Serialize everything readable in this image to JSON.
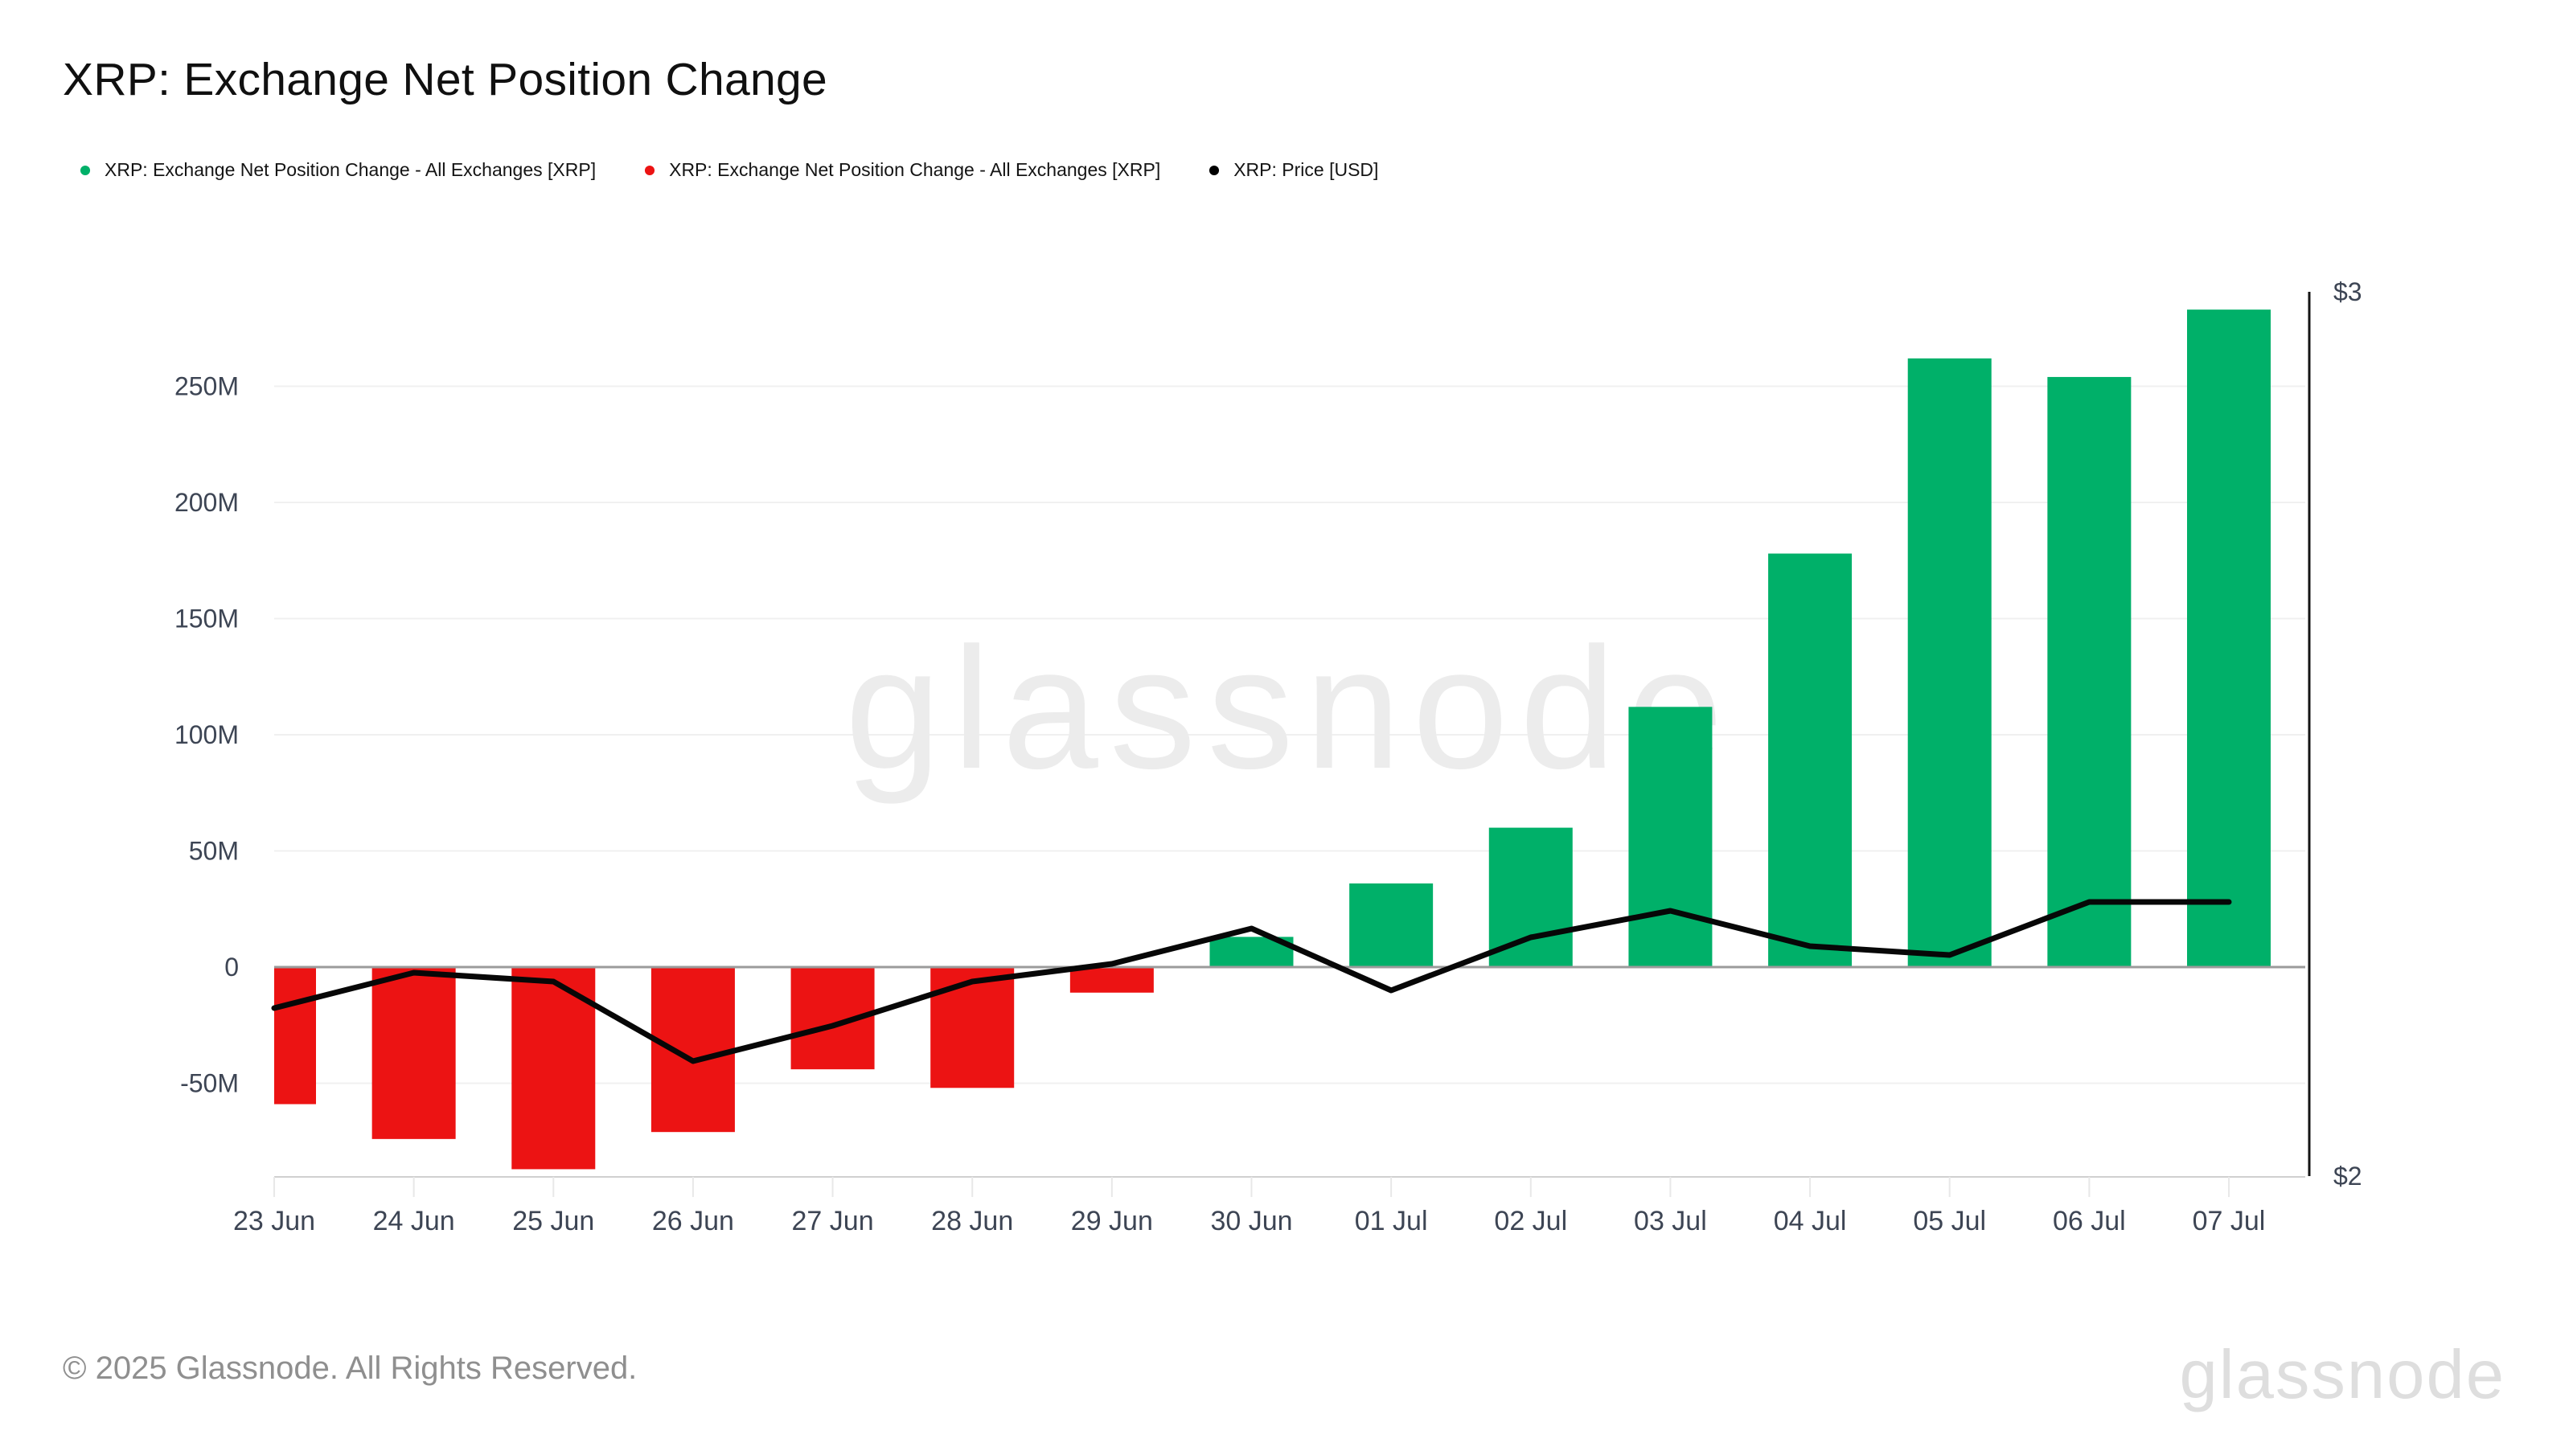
{
  "page": {
    "title": "XRP: Exchange Net Position Change",
    "footer": "© 2025 Glassnode. All Rights Reserved.",
    "watermark": "glassnode",
    "brand_logo": "glassnode"
  },
  "legend": {
    "items": [
      {
        "label": "XRP: Exchange Net Position Change - All Exchanges [XRP]",
        "color": "#00b069"
      },
      {
        "label": "XRP: Exchange Net Position Change - All Exchanges [XRP]",
        "color": "#ec1313"
      },
      {
        "label": "XRP: Price [USD]",
        "color": "#000000"
      }
    ]
  },
  "chart_data": {
    "type": "bar",
    "title": "XRP: Exchange Net Position Change",
    "categories": [
      "23 Jun",
      "24 Jun",
      "25 Jun",
      "26 Jun",
      "27 Jun",
      "28 Jun",
      "29 Jun",
      "30 Jun",
      "01 Jul",
      "02 Jul",
      "03 Jul",
      "04 Jul",
      "05 Jul",
      "06 Jul",
      "07 Jul"
    ],
    "series": [
      {
        "name": "XRP: Exchange Net Position Change - All Exchanges [XRP]",
        "type": "bar",
        "unit": "XRP",
        "values_millions": [
          -59,
          -74,
          -87,
          -71,
          -44,
          -52,
          -11,
          13,
          36,
          60,
          112,
          178,
          262,
          254,
          283
        ],
        "positive_color": "#00b069",
        "negative_color": "#ec1313"
      },
      {
        "name": "XRP: Price [USD]",
        "type": "line",
        "unit": "USD",
        "values_usd": [
          2.19,
          2.23,
          2.22,
          2.13,
          2.17,
          2.22,
          2.24,
          2.28,
          2.21,
          2.27,
          2.3,
          2.26,
          2.25,
          2.31,
          2.31
        ],
        "color": "#070707"
      }
    ],
    "left_axis": {
      "unit": "XRP",
      "tick_labels": [
        "250M",
        "200M",
        "150M",
        "100M",
        "50M",
        "0",
        "-50M"
      ],
      "tick_values_millions": [
        250,
        200,
        150,
        100,
        50,
        0,
        -50
      ],
      "range_millions": [
        -90,
        291
      ],
      "grid": true
    },
    "right_axis": {
      "unit": "USD",
      "tick_labels": [
        "$3",
        "$2"
      ],
      "tick_values_usd": [
        3,
        2
      ],
      "range_usd": [
        2,
        3
      ]
    },
    "legend_position": "top-left",
    "watermark": "glassnode"
  }
}
